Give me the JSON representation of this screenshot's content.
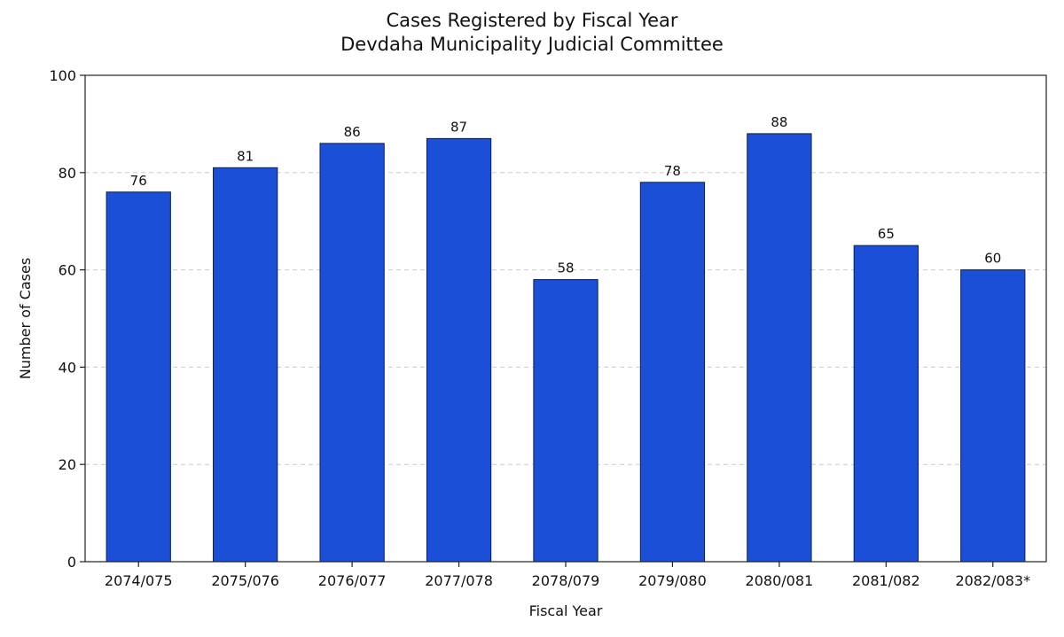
{
  "chart_data": {
    "type": "bar",
    "title": "Cases Registered by Fiscal Year",
    "subtitle": "Devdaha Municipality Judicial Committee",
    "xlabel": "Fiscal Year",
    "ylabel": "Number of Cases",
    "categories": [
      "2074/075",
      "2075/076",
      "2076/077",
      "2077/078",
      "2078/079",
      "2079/080",
      "2080/081",
      "2081/082",
      "2082/083*"
    ],
    "values": [
      76,
      81,
      86,
      87,
      58,
      78,
      88,
      65,
      60
    ],
    "ylim": [
      0,
      100
    ],
    "yticks": [
      0,
      20,
      40,
      60,
      80,
      100
    ],
    "grid": "y-dashed",
    "legend": "none",
    "colors": {
      "bar": "#1c4fd8",
      "bar_edge": "#0a1f4d",
      "grid": "#cccccc",
      "axis": "#222222"
    }
  }
}
